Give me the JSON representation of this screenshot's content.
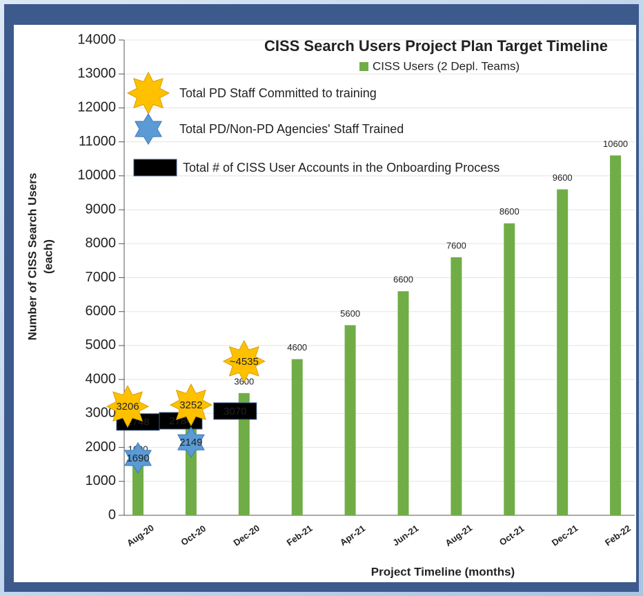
{
  "chart_data": {
    "type": "bar",
    "title": "CISS Search Users Project Plan Target Timeline",
    "y_label": [
      "Number of CISS Search Users",
      "(each)"
    ],
    "x_label": "Project Timeline (months)",
    "categories": [
      "Aug-20",
      "Oct-20",
      "Dec-20",
      "Feb-21",
      "Apr-21",
      "Jun-21",
      "Aug-21",
      "Oct-21",
      "Dec-21",
      "Feb-22"
    ],
    "series": [
      {
        "name": "CISS Users (2 Depl. Teams)",
        "color": "#70ad47",
        "values": [
          1600,
          2600,
          3600,
          4600,
          5600,
          6600,
          7600,
          8600,
          9600,
          10600
        ]
      }
    ],
    "ylim": [
      0,
      14000
    ],
    "yticks": [
      0,
      1000,
      2000,
      3000,
      4000,
      5000,
      6000,
      7000,
      8000,
      9000,
      10000,
      11000,
      12000,
      13000,
      14000
    ],
    "grid": true,
    "markers": [
      {
        "name": "Total PD Staff Committed to training",
        "shape": "star8",
        "color": "#ffc000",
        "values": [
          3206,
          3252,
          4535,
          null,
          null,
          null,
          null,
          null,
          null,
          null
        ],
        "value_labels": [
          "3206",
          "3252",
          "~4535",
          null,
          null,
          null,
          null,
          null,
          null,
          null
        ]
      },
      {
        "name": "Total PD/Non-PD Agencies' Staff Trained",
        "shape": "star6",
        "color": "#5b9bd5",
        "values": [
          1690,
          2149,
          null,
          null,
          null,
          null,
          null,
          null,
          null,
          null
        ]
      },
      {
        "name": "Total # of CISS User Accounts in the Onboarding Process",
        "shape": "box",
        "color": "#000000",
        "values": [
          2748,
          2784,
          3070,
          null,
          null,
          null,
          null,
          null,
          null,
          null
        ]
      }
    ]
  }
}
